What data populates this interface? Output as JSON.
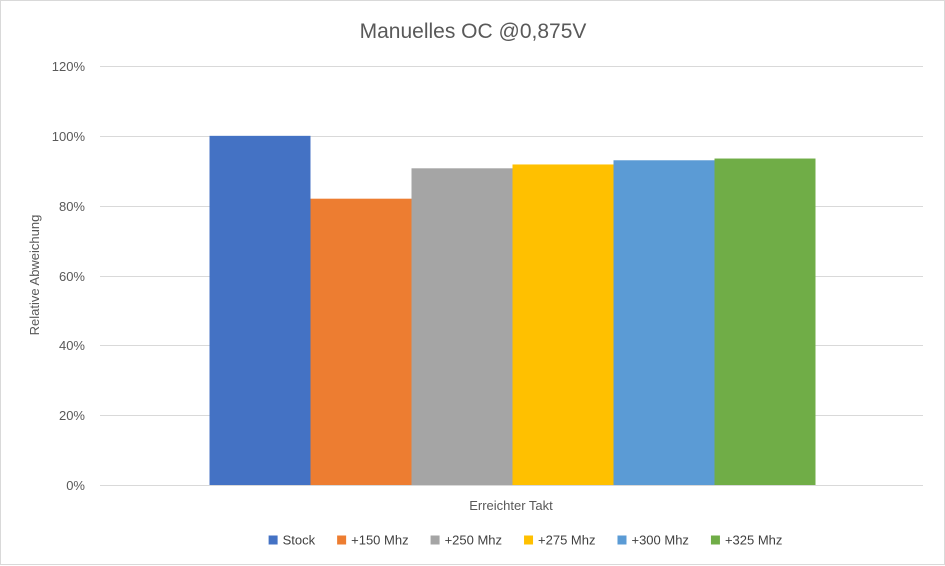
{
  "chart_data": {
    "type": "bar",
    "title": "Manuelles OC @0,875V",
    "xlabel": "Erreichter Takt",
    "ylabel": "Relative Abweichung",
    "categories": [
      "Erreichter Takt"
    ],
    "ylim": [
      0,
      120
    ],
    "yticks": [
      0,
      20,
      40,
      60,
      80,
      100,
      120
    ],
    "ytick_labels": [
      "0%",
      "20%",
      "40%",
      "60%",
      "80%",
      "100%",
      "120%"
    ],
    "grid": true,
    "legend_position": "bottom",
    "series": [
      {
        "name": "Stock",
        "values": [
          100
        ],
        "color": "#4472C4"
      },
      {
        "name": "+150 Mhz",
        "values": [
          82
        ],
        "color": "#ED7D31"
      },
      {
        "name": "+250 Mhz",
        "values": [
          90.7
        ],
        "color": "#A5A5A5"
      },
      {
        "name": "+275 Mhz",
        "values": [
          91.8
        ],
        "color": "#FFC000"
      },
      {
        "name": "+300 Mhz",
        "values": [
          93
        ],
        "color": "#5B9BD5"
      },
      {
        "name": "+325 Mhz",
        "values": [
          93.5
        ],
        "color": "#70AD47"
      }
    ]
  }
}
